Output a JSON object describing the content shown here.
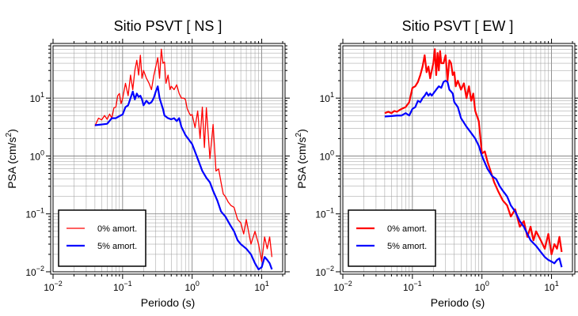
{
  "chart_data": [
    {
      "type": "line",
      "title": "Sitio PSVT [ NS ]",
      "xlabel": "Periodo (s)",
      "ylabel": "PSA (cm/s²)",
      "xscale": "log",
      "yscale": "log",
      "xlim": [
        0.01,
        20
      ],
      "ylim": [
        0.01,
        80
      ],
      "grid": true,
      "legend_position": "bottom-left",
      "xticks": [
        {
          "base": "10",
          "exp": "−2",
          "value": 0.01
        },
        {
          "base": "10",
          "exp": "−1",
          "value": 0.1
        },
        {
          "base": "10",
          "exp": "0",
          "value": 1
        },
        {
          "base": "10",
          "exp": "1",
          "value": 10
        }
      ],
      "yticks": [
        {
          "base": "10",
          "exp": "−2",
          "value": 0.01
        },
        {
          "base": "10",
          "exp": "−1",
          "value": 0.1
        },
        {
          "base": "10",
          "exp": "0",
          "value": 1
        },
        {
          "base": "10",
          "exp": "1",
          "value": 10
        }
      ],
      "series": [
        {
          "name": "0% amort.",
          "color": "#ff0000",
          "width": 1.3,
          "x": [
            0.04,
            0.045,
            0.05,
            0.055,
            0.06,
            0.065,
            0.07,
            0.075,
            0.08,
            0.085,
            0.09,
            0.095,
            0.1,
            0.11,
            0.12,
            0.13,
            0.14,
            0.15,
            0.16,
            0.17,
            0.18,
            0.19,
            0.2,
            0.22,
            0.24,
            0.26,
            0.28,
            0.3,
            0.32,
            0.34,
            0.36,
            0.38,
            0.4,
            0.42,
            0.45,
            0.48,
            0.5,
            0.55,
            0.6,
            0.65,
            0.7,
            0.75,
            0.8,
            0.85,
            0.9,
            0.95,
            1.0,
            1.1,
            1.2,
            1.3,
            1.4,
            1.5,
            1.6,
            1.8,
            2.0,
            2.2,
            2.4,
            2.6,
            2.8,
            3.0,
            3.3,
            3.6,
            4.0,
            4.5,
            5.0,
            5.5,
            6.0,
            7.0,
            8.0,
            9.0,
            10.0,
            11.0,
            12.0,
            13.0,
            14.0
          ],
          "y": [
            3.3,
            4.5,
            4.2,
            5.0,
            4.3,
            5.3,
            4.5,
            6.8,
            7.0,
            11,
            12,
            8.0,
            9.8,
            18,
            11,
            25,
            14,
            30,
            45,
            25,
            55,
            22,
            30,
            22,
            18,
            14,
            24,
            35,
            50,
            22,
            70,
            40,
            42,
            18,
            25,
            14,
            16,
            14,
            17,
            12,
            10,
            10,
            9.5,
            6.5,
            5.6,
            5.0,
            5.2,
            3.1,
            6.0,
            2.0,
            7.0,
            1.4,
            6.8,
            0.9,
            3.5,
            0.55,
            0.6,
            0.35,
            0.22,
            0.2,
            0.16,
            0.14,
            0.13,
            0.08,
            0.07,
            0.045,
            0.08,
            0.03,
            0.05,
            0.03,
            0.015,
            0.04,
            0.025,
            0.04,
            0.018
          ]
        },
        {
          "name": "5% amort.",
          "color": "#0000ff",
          "width": 2.2,
          "x": [
            0.04,
            0.05,
            0.06,
            0.07,
            0.08,
            0.09,
            0.1,
            0.11,
            0.12,
            0.13,
            0.14,
            0.15,
            0.16,
            0.17,
            0.18,
            0.19,
            0.2,
            0.22,
            0.24,
            0.26,
            0.28,
            0.3,
            0.32,
            0.34,
            0.36,
            0.38,
            0.4,
            0.45,
            0.5,
            0.55,
            0.6,
            0.65,
            0.7,
            0.8,
            0.9,
            1.0,
            1.2,
            1.4,
            1.6,
            1.8,
            2.0,
            2.3,
            2.6,
            3.0,
            3.5,
            4.0,
            4.5,
            5.0,
            6.0,
            7.0,
            8.0,
            9.0,
            10.0,
            11.0,
            12.0,
            13.0,
            14.0
          ],
          "y": [
            3.4,
            3.5,
            3.6,
            4.5,
            4.5,
            4.9,
            5.2,
            7.0,
            7.5,
            10,
            13,
            9.5,
            12,
            10.5,
            11,
            9.5,
            7.5,
            9.0,
            8.0,
            8.5,
            10,
            13,
            16,
            10,
            8.0,
            6.5,
            5.0,
            4.5,
            4.3,
            4.5,
            4.0,
            4.5,
            3.2,
            2.3,
            1.9,
            1.6,
            0.9,
            0.55,
            0.42,
            0.35,
            0.25,
            0.17,
            0.11,
            0.09,
            0.065,
            0.05,
            0.035,
            0.03,
            0.025,
            0.02,
            0.014,
            0.011,
            0.012,
            0.018,
            0.016,
            0.014,
            0.011
          ]
        }
      ]
    },
    {
      "type": "line",
      "title": "Sitio PSVT [ EW ]",
      "xlabel": "Periodo (s)",
      "ylabel": "PSA (cm/s²)",
      "xscale": "log",
      "yscale": "log",
      "xlim": [
        0.01,
        20
      ],
      "ylim": [
        0.01,
        80
      ],
      "grid": true,
      "legend_position": "bottom-left",
      "xticks": [
        {
          "base": "10",
          "exp": "−2",
          "value": 0.01
        },
        {
          "base": "10",
          "exp": "−1",
          "value": 0.1
        },
        {
          "base": "10",
          "exp": "0",
          "value": 1
        },
        {
          "base": "10",
          "exp": "1",
          "value": 10
        }
      ],
      "yticks": [
        {
          "base": "10",
          "exp": "−2",
          "value": 0.01
        },
        {
          "base": "10",
          "exp": "−1",
          "value": 0.1
        },
        {
          "base": "10",
          "exp": "0",
          "value": 1
        },
        {
          "base": "10",
          "exp": "1",
          "value": 10
        }
      ],
      "series": [
        {
          "name": "0% amort.",
          "color": "#ff0000",
          "width": 2.2,
          "x": [
            0.04,
            0.045,
            0.05,
            0.055,
            0.06,
            0.065,
            0.07,
            0.08,
            0.09,
            0.1,
            0.11,
            0.12,
            0.13,
            0.14,
            0.15,
            0.16,
            0.17,
            0.18,
            0.19,
            0.2,
            0.21,
            0.22,
            0.23,
            0.24,
            0.25,
            0.26,
            0.28,
            0.3,
            0.32,
            0.34,
            0.36,
            0.38,
            0.4,
            0.42,
            0.45,
            0.5,
            0.55,
            0.6,
            0.65,
            0.7,
            0.75,
            0.8,
            0.9,
            1.0,
            1.1,
            1.2,
            1.3,
            1.5,
            1.7,
            2.0,
            2.3,
            2.6,
            3.0,
            3.5,
            4.0,
            4.5,
            5.0,
            5.5,
            6.0,
            7.0,
            8.0,
            9.0,
            10.0,
            11.0,
            12.0,
            13.0,
            14.0
          ],
          "y": [
            5.5,
            5.8,
            5.5,
            6.0,
            5.8,
            6.2,
            6.5,
            7.0,
            8.5,
            15,
            16,
            19,
            25,
            35,
            55,
            28,
            35,
            22,
            30,
            40,
            70,
            25,
            60,
            30,
            65,
            40,
            40,
            55,
            20,
            45,
            40,
            25,
            28,
            16,
            20,
            14,
            18,
            10,
            16,
            9,
            12,
            6.0,
            4.0,
            1.1,
            1.2,
            0.8,
            0.6,
            0.35,
            0.25,
            0.17,
            0.14,
            0.09,
            0.12,
            0.06,
            0.075,
            0.04,
            0.06,
            0.035,
            0.05,
            0.035,
            0.025,
            0.045,
            0.02,
            0.03,
            0.025,
            0.04,
            0.022
          ]
        },
        {
          "name": "5% amort.",
          "color": "#0000ff",
          "width": 2.2,
          "x": [
            0.04,
            0.05,
            0.06,
            0.07,
            0.08,
            0.09,
            0.1,
            0.11,
            0.12,
            0.13,
            0.14,
            0.15,
            0.16,
            0.17,
            0.18,
            0.19,
            0.2,
            0.22,
            0.24,
            0.26,
            0.28,
            0.3,
            0.32,
            0.34,
            0.36,
            0.38,
            0.4,
            0.45,
            0.5,
            0.6,
            0.7,
            0.8,
            0.9,
            1.0,
            1.2,
            1.4,
            1.6,
            1.8,
            2.0,
            2.3,
            2.6,
            3.0,
            3.5,
            4.0,
            4.5,
            5.0,
            6.0,
            7.0,
            8.0,
            9.0,
            10.0,
            11.0,
            12.0,
            13.0,
            14.0
          ],
          "y": [
            4.8,
            4.9,
            5.0,
            5.0,
            5.5,
            5.0,
            6.5,
            7.0,
            9.0,
            8.5,
            10,
            11,
            12.5,
            11,
            12,
            11,
            12,
            14,
            16,
            15,
            19,
            20,
            19,
            14,
            13,
            12,
            8.5,
            7.0,
            4.5,
            3.2,
            2.5,
            2.0,
            1.5,
            1.0,
            0.6,
            0.45,
            0.4,
            0.3,
            0.25,
            0.2,
            0.14,
            0.11,
            0.075,
            0.06,
            0.045,
            0.035,
            0.028,
            0.022,
            0.018,
            0.016,
            0.015,
            0.014,
            0.016,
            0.017,
            0.012
          ]
        }
      ]
    }
  ]
}
